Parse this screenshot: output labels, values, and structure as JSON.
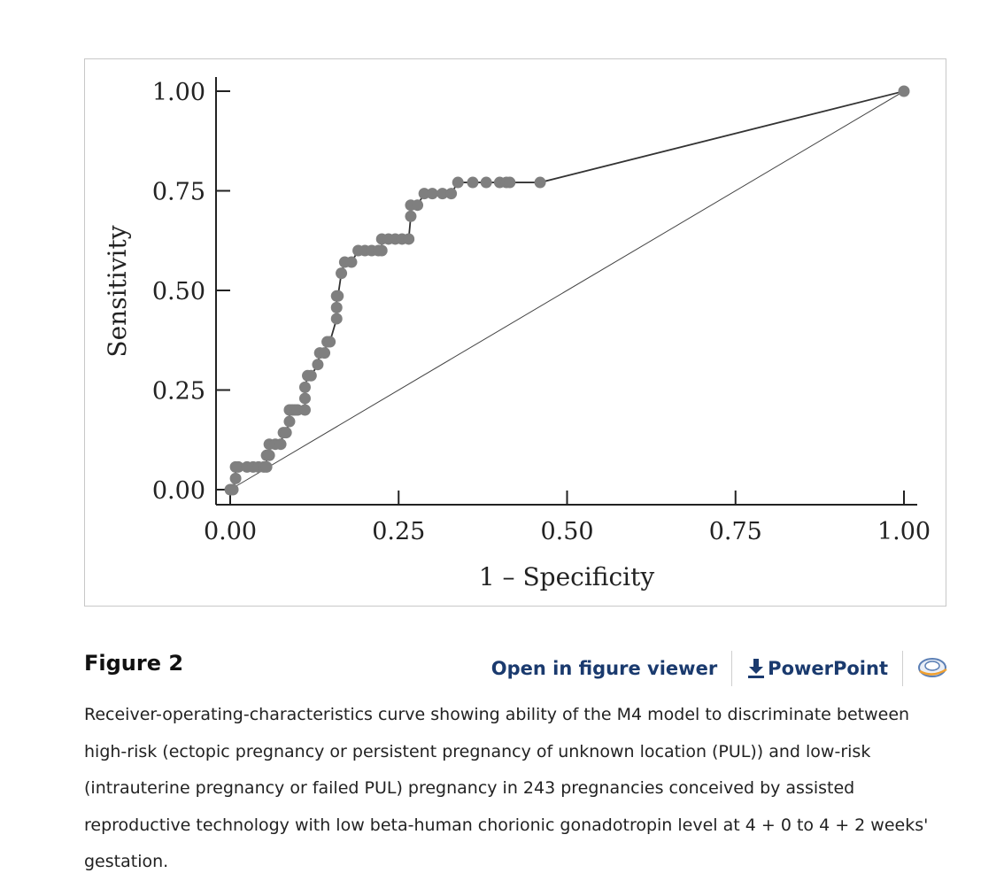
{
  "chart_data": {
    "type": "line",
    "xlabel": "1 – Specificity",
    "ylabel": "Sensitivity",
    "xlim": [
      0,
      1
    ],
    "ylim": [
      0,
      1
    ],
    "xticks": [
      0,
      0.25,
      0.5,
      0.75,
      1
    ],
    "yticks": [
      0,
      0.25,
      0.5,
      0.75,
      1
    ],
    "xtick_labels": [
      "0.00",
      "0.25",
      "0.50",
      "0.75",
      "1.00"
    ],
    "ytick_labels": [
      "0.00",
      "0.25",
      "0.50",
      "0.75",
      "1.00"
    ],
    "grid": false,
    "series": [
      {
        "role": "roc-curve",
        "color": "#7f7f7f",
        "line_color": "#333333",
        "x": [
          0,
          0.004,
          0.008,
          0.008,
          0.012,
          0.025,
          0.034,
          0.042,
          0.05,
          0.054,
          0.054,
          0.058,
          0.058,
          0.067,
          0.075,
          0.079,
          0.083,
          0.088,
          0.088,
          0.092,
          0.096,
          0.1,
          0.111,
          0.111,
          0.111,
          0.115,
          0.12,
          0.13,
          0.133,
          0.14,
          0.144,
          0.148,
          0.158,
          0.158,
          0.158,
          0.16,
          0.165,
          0.17,
          0.18,
          0.19,
          0.2,
          0.21,
          0.22,
          0.225,
          0.225,
          0.235,
          0.245,
          0.255,
          0.265,
          0.268,
          0.268,
          0.278,
          0.288,
          0.3,
          0.315,
          0.328,
          0.338,
          0.36,
          0.38,
          0.4,
          0.41,
          0.415,
          0.46,
          1.0
        ],
        "y": [
          0,
          0,
          0.028,
          0.057,
          0.057,
          0.057,
          0.057,
          0.057,
          0.057,
          0.057,
          0.086,
          0.086,
          0.114,
          0.114,
          0.114,
          0.143,
          0.143,
          0.171,
          0.2,
          0.2,
          0.2,
          0.2,
          0.2,
          0.229,
          0.257,
          0.286,
          0.286,
          0.314,
          0.343,
          0.343,
          0.371,
          0.371,
          0.429,
          0.457,
          0.486,
          0.486,
          0.543,
          0.571,
          0.571,
          0.6,
          0.6,
          0.6,
          0.6,
          0.6,
          0.629,
          0.629,
          0.629,
          0.629,
          0.629,
          0.686,
          0.714,
          0.714,
          0.743,
          0.743,
          0.743,
          0.743,
          0.771,
          0.771,
          0.771,
          0.771,
          0.771,
          0.771,
          0.771,
          1.0
        ]
      },
      {
        "role": "reference-diagonal",
        "color": "#444444",
        "x": [
          0,
          1
        ],
        "y": [
          0,
          1
        ]
      }
    ]
  },
  "figure": {
    "title": "Figure 2",
    "open_viewer_label": "Open in figure viewer",
    "powerpoint_label": "PowerPoint",
    "caption": "Receiver-operating-characteristics curve showing ability of the M4 model to discriminate between high-risk (ectopic pregnancy or persistent pregnancy of unknown location (PUL)) and low-risk (intrauterine pregnancy or failed PUL) pregnancy in 243 pregnancies conceived by assisted reproductive technology with low beta-human chorionic gonadotropin level at 4 + 0 to 4 + 2 weeks' gestation."
  },
  "icons": {
    "download": "download-icon",
    "viewer": "figure-viewer-icon"
  },
  "colors": {
    "link": "#1a3a6e",
    "marker": "#7f7f7f",
    "frame_border": "#c8c8c8"
  }
}
